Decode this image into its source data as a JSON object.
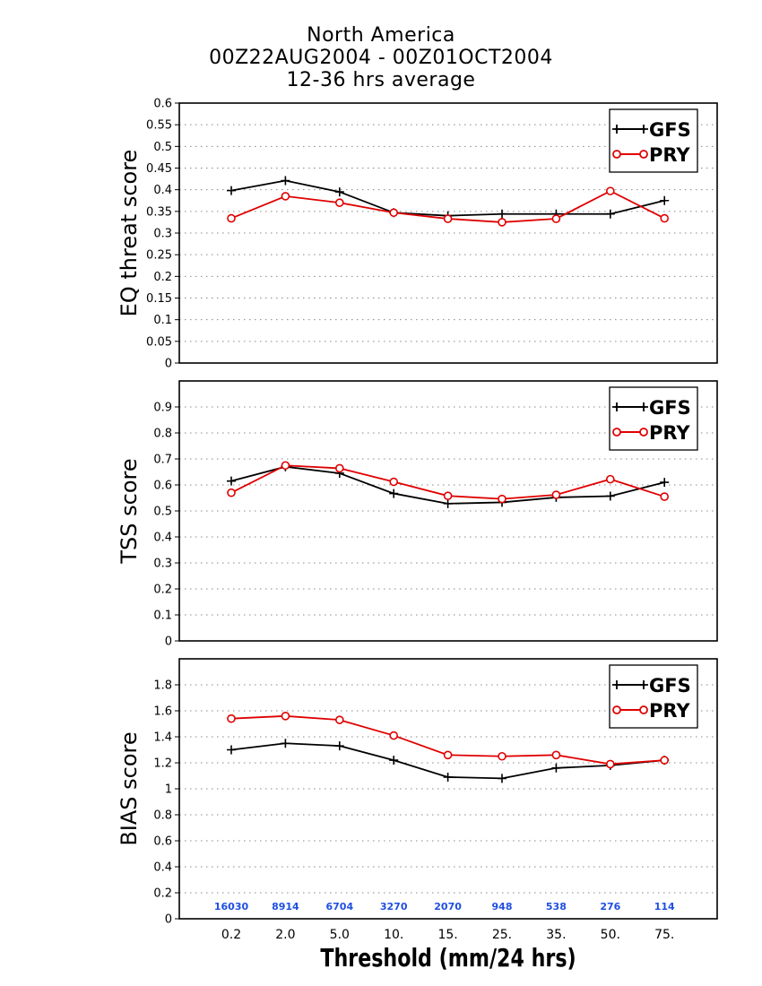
{
  "title": {
    "line1": "North America",
    "line2": "00Z22AUG2004 - 00Z01OCT2004",
    "line3": "12-36 hrs average"
  },
  "xlabel": "Threshold (mm/24 hrs)",
  "colors": {
    "GFS": "#000000",
    "PRY": "#e00000",
    "counts": "#1f4fe0"
  },
  "chart_data": [
    {
      "type": "line",
      "ylabel": "EQ threat score",
      "categories": [
        "0.2",
        "2.0",
        "5.0",
        "10.",
        "15.",
        "25.",
        "35.",
        "50.",
        "75."
      ],
      "ylim": [
        0,
        0.6
      ],
      "yticks": [
        "0",
        "0.05",
        "0.1",
        "0.15",
        "0.2",
        "0.25",
        "0.3",
        "0.35",
        "0.4",
        "0.45",
        "0.5",
        "0.55",
        "0.6"
      ],
      "grid": true,
      "legend": "top-right",
      "series": [
        {
          "name": "GFS",
          "values": [
            0.398,
            0.421,
            0.395,
            0.347,
            0.34,
            0.344,
            0.344,
            0.344,
            0.375
          ]
        },
        {
          "name": "PRY",
          "values": [
            0.334,
            0.385,
            0.37,
            0.347,
            0.333,
            0.325,
            0.333,
            0.397,
            0.334
          ]
        }
      ]
    },
    {
      "type": "line",
      "ylabel": "TSS score",
      "categories": [
        "0.2",
        "2.0",
        "5.0",
        "10.",
        "15.",
        "25.",
        "35.",
        "50.",
        "75."
      ],
      "ylim": [
        0,
        1.0
      ],
      "yticks": [
        "0",
        "0.1",
        "0.2",
        "0.3",
        "0.4",
        "0.5",
        "0.6",
        "0.7",
        "0.8",
        "0.9"
      ],
      "grid": true,
      "legend": "top-right",
      "series": [
        {
          "name": "GFS",
          "values": [
            0.615,
            0.67,
            0.645,
            0.567,
            0.528,
            0.533,
            0.552,
            0.557,
            0.61
          ]
        },
        {
          "name": "PRY",
          "values": [
            0.57,
            0.675,
            0.664,
            0.612,
            0.558,
            0.546,
            0.562,
            0.622,
            0.555
          ]
        }
      ]
    },
    {
      "type": "line",
      "ylabel": "BIAS score",
      "categories": [
        "0.2",
        "2.0",
        "5.0",
        "10.",
        "15.",
        "25.",
        "35.",
        "50.",
        "75."
      ],
      "ylim": [
        0,
        2.0
      ],
      "yticks": [
        "0",
        "0.2",
        "0.4",
        "0.6",
        "0.8",
        "1",
        "1.2",
        "1.4",
        "1.6",
        "1.8"
      ],
      "grid": true,
      "legend": "top-right",
      "counts": [
        "16030",
        "8914",
        "6704",
        "3270",
        "2070",
        "948",
        "538",
        "276",
        "114"
      ],
      "series": [
        {
          "name": "GFS",
          "values": [
            1.3,
            1.35,
            1.33,
            1.22,
            1.09,
            1.08,
            1.16,
            1.18,
            1.22
          ]
        },
        {
          "name": "PRY",
          "values": [
            1.54,
            1.56,
            1.53,
            1.41,
            1.26,
            1.25,
            1.26,
            1.19,
            1.22
          ]
        }
      ]
    }
  ]
}
